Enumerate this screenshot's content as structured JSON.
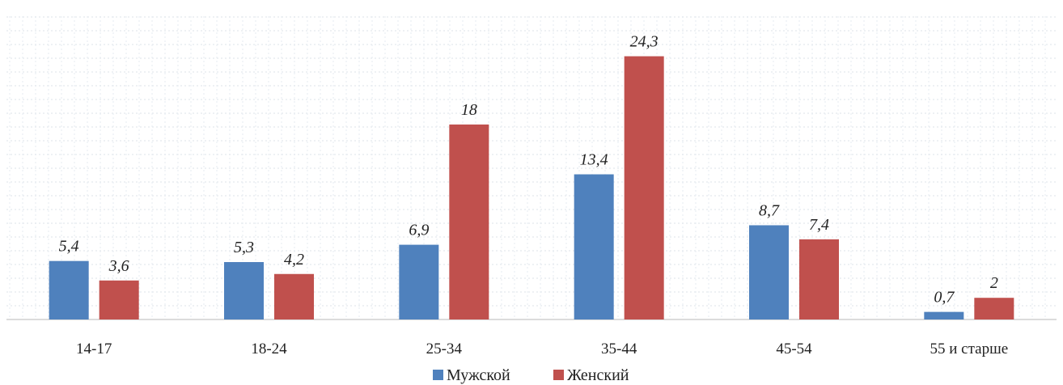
{
  "chart_data": {
    "type": "bar",
    "title": "",
    "xlabel": "",
    "ylabel": "",
    "categories": [
      "14-17",
      "18-24",
      "25-34",
      "35-44",
      "45-54",
      "55 и старше"
    ],
    "series": [
      {
        "name": "Мужской",
        "color": "#4f81bd",
        "values": [
          5.4,
          5.3,
          6.9,
          13.4,
          8.7,
          0.7
        ],
        "labels": [
          "5,4",
          "5,3",
          "6,9",
          "13,4",
          "8,7",
          "0,7"
        ]
      },
      {
        "name": "Женский",
        "color": "#c0504d",
        "values": [
          3.6,
          4.2,
          18,
          24.3,
          7.4,
          2
        ],
        "labels": [
          "3,6",
          "4,2",
          "18",
          "24,3",
          "7,4",
          "2"
        ]
      }
    ],
    "ylim": [
      0,
      28
    ],
    "grid": true,
    "legend": "bottom"
  }
}
